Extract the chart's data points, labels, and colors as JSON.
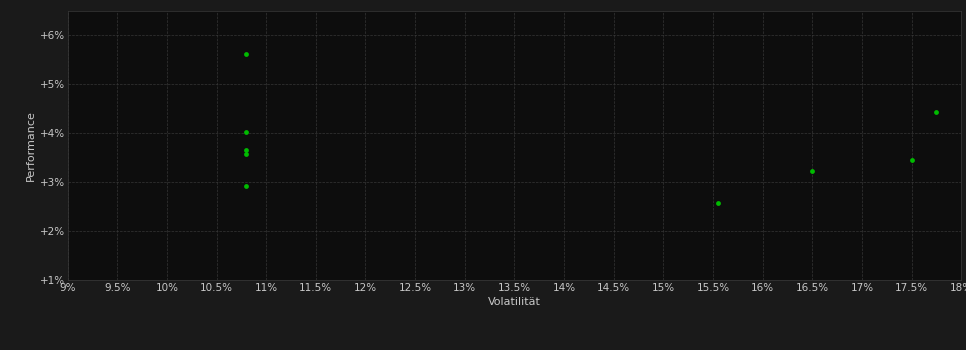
{
  "points_x": [
    10.8,
    10.8,
    10.8,
    10.8,
    10.8,
    15.55,
    16.5,
    17.5,
    17.75
  ],
  "points_y": [
    5.62,
    4.02,
    3.65,
    3.58,
    2.92,
    2.57,
    3.22,
    3.45,
    4.42
  ],
  "point_color": "#00bb00",
  "point_size": 12,
  "background_color": "#1a1a1a",
  "plot_bg_color": "#0d0d0d",
  "grid_color": "#3a3a3a",
  "text_color": "#c8c8c8",
  "xlabel": "Volatilität",
  "ylabel": "Performance",
  "xlim": [
    9.0,
    18.0
  ],
  "ylim": [
    1.0,
    6.5
  ],
  "xtick_values": [
    9.0,
    9.5,
    10.0,
    10.5,
    11.0,
    11.5,
    12.0,
    12.5,
    13.0,
    13.5,
    14.0,
    14.5,
    15.0,
    15.5,
    16.0,
    16.5,
    17.0,
    17.5,
    18.0
  ],
  "ytick_values": [
    1.0,
    2.0,
    3.0,
    4.0,
    5.0,
    6.0
  ],
  "ytick_labels": [
    "+1%",
    "+2%",
    "+3%",
    "+4%",
    "+5%",
    "+6%"
  ],
  "font_size_labels": 8,
  "font_size_ticks": 7.5
}
